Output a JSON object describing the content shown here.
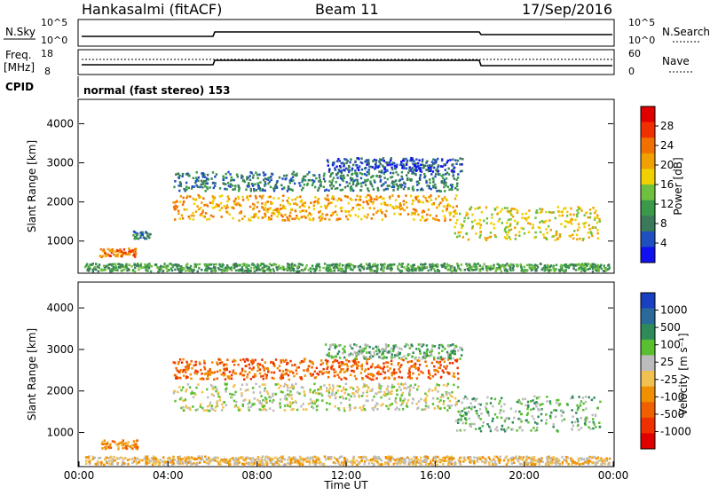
{
  "header": {
    "station": "Hankasalmi (fitACF)",
    "beam": "Beam 11",
    "date": "17/Sep/2016"
  },
  "top_panels": {
    "nsky_label": "N.Sky",
    "nsky_ticks": [
      "10^5",
      "10^0"
    ],
    "nsearch_label": "N.Search",
    "nsearch_ticks": [
      "10^5",
      "10^0"
    ],
    "freq_label": "Freq.",
    "freq_unit": "[MHz]",
    "freq_ticks": [
      "18",
      "8"
    ],
    "nave_label": "Nave",
    "nave_ticks": [
      "60",
      "0"
    ],
    "cpid_label": "CPID",
    "cpid_text": "normal (fast stereo) 153"
  },
  "colors": {
    "power_scale": [
      "#1010f0",
      "#2050c0",
      "#3a7a5a",
      "#3a9a4a",
      "#70c040",
      "#f0d000",
      "#f0a000",
      "#f07000",
      "#f03000",
      "#e00000"
    ],
    "velocity_scale": [
      "#1840c0",
      "#2a6a9a",
      "#2f8a5a",
      "#58c030",
      "#bcbcbc",
      "#f0c050",
      "#f09000",
      "#f06000",
      "#f03000",
      "#e00000"
    ],
    "ground_scatter": "#bcbcbc"
  },
  "chart_data": [
    {
      "type": "heatmap",
      "panel": "power",
      "ylabel": "Slant Range [km]",
      "yticks": [
        "4000",
        "3000",
        "2000",
        "1000"
      ],
      "ylim": [
        200,
        4600
      ],
      "xlim": [
        0,
        24
      ],
      "colorbar_label": "Power [dB]",
      "colorbar_ticks": [
        "28",
        "24",
        "20",
        "16",
        "12",
        "8",
        "4"
      ],
      "bands": [
        {
          "x": [
            0.9,
            2.6
          ],
          "y": [
            620,
            840
          ],
          "level": 7
        },
        {
          "x": [
            2.4,
            3.2
          ],
          "y": [
            1080,
            1280
          ],
          "level": 2
        },
        {
          "x": [
            4.2,
            17.0
          ],
          "y": [
            1550,
            2200
          ],
          "level": 6
        },
        {
          "x": [
            4.2,
            17.0
          ],
          "y": [
            2300,
            2800
          ],
          "level": 2
        },
        {
          "x": [
            11.0,
            17.2
          ],
          "y": [
            2800,
            3150
          ],
          "level": 1
        },
        {
          "x": [
            16.8,
            23.4
          ],
          "y": [
            1050,
            1900
          ],
          "level": 5
        },
        {
          "x": [
            0.2,
            23.8
          ],
          "y": [
            250,
            450
          ],
          "level": 3
        }
      ]
    },
    {
      "type": "heatmap",
      "panel": "velocity",
      "ylabel": "Slant Range [km]",
      "yticks": [
        "4000",
        "3000",
        "2000",
        "1000"
      ],
      "ylim": [
        200,
        4600
      ],
      "xlim": [
        0,
        24
      ],
      "colorbar_label": "Velocity [m s⁻¹]",
      "colorbar_ticks": [
        "1000",
        "500",
        "100",
        "25",
        "-25",
        "-100",
        "-500",
        "-1000"
      ],
      "xticks": [
        "00:00",
        "04:00",
        "08:00",
        "12:00",
        "16:00",
        "20:00",
        "00:00"
      ],
      "xlabel": "Time UT",
      "bands": [
        {
          "x": [
            0.9,
            2.6
          ],
          "y": [
            620,
            840
          ],
          "level": 6
        },
        {
          "x": [
            4.2,
            17.0
          ],
          "y": [
            1550,
            2200
          ],
          "level": 4
        },
        {
          "x": [
            4.2,
            17.0
          ],
          "y": [
            2300,
            2800
          ],
          "level": 7
        },
        {
          "x": [
            11.0,
            17.2
          ],
          "y": [
            2800,
            3150
          ],
          "level": 3
        },
        {
          "x": [
            16.8,
            23.4
          ],
          "y": [
            1050,
            1900
          ],
          "level": 3
        },
        {
          "x": [
            0.2,
            23.8
          ],
          "y": [
            250,
            450
          ],
          "level": 5
        }
      ]
    }
  ]
}
